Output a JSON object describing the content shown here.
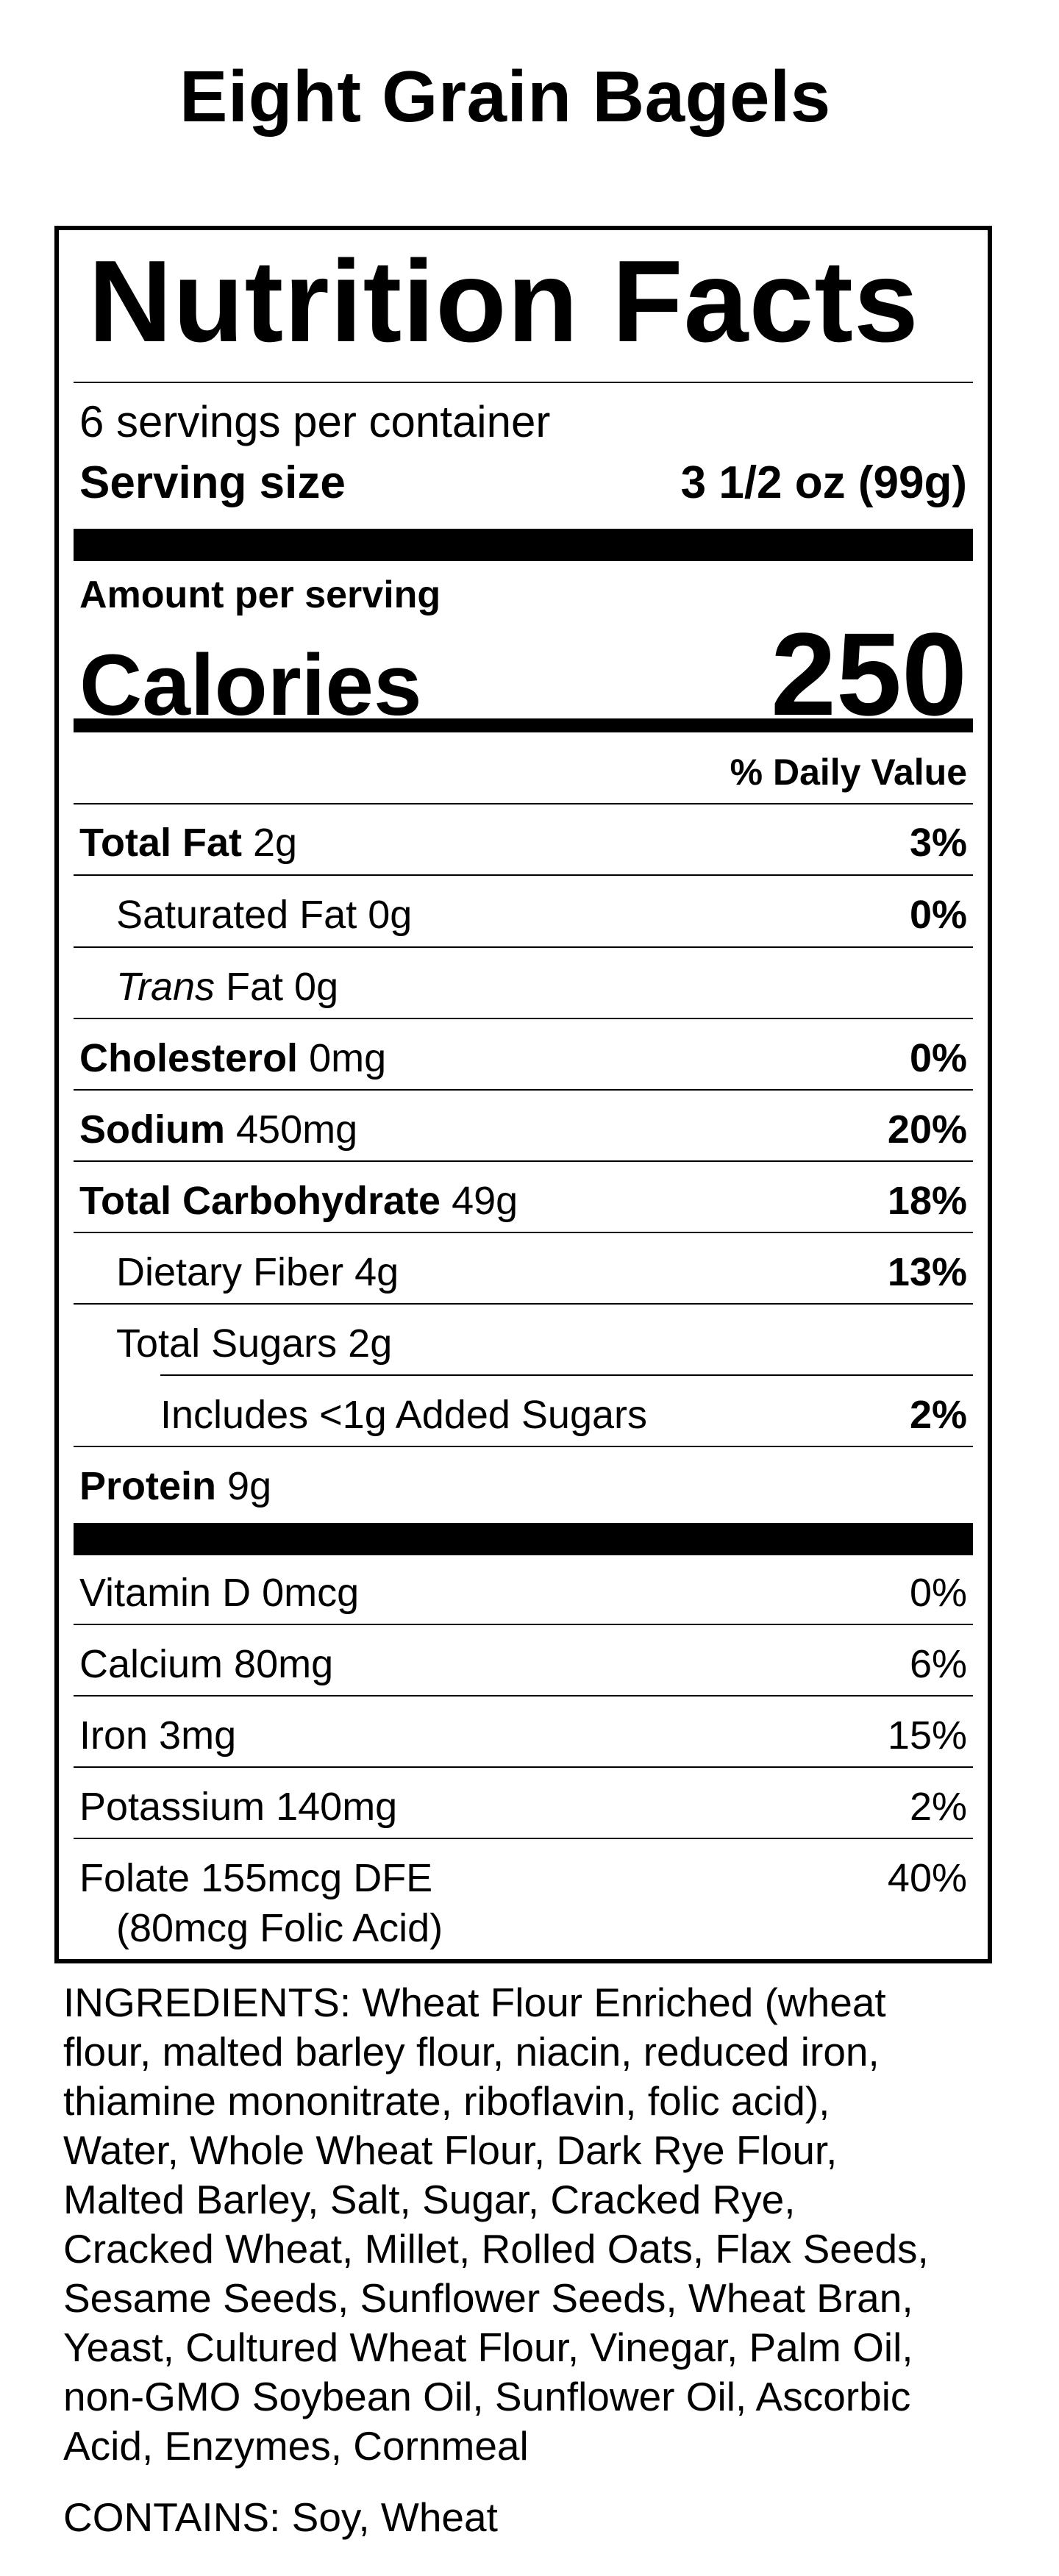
{
  "product": {
    "title": "Eight Grain Bagels"
  },
  "nutrition": {
    "title": "Nutrition Facts",
    "servings_per_container": "6 servings per container",
    "serving_size_label": "Serving size",
    "serving_size_value": "3 1/2 oz (99g)",
    "amount_per_serving": "Amount per serving",
    "calories_label": "Calories",
    "calories_value": "250",
    "daily_value_header": "% Daily Value",
    "total_fat": {
      "label": "Total Fat",
      "amount": " 2g",
      "dv": "3%"
    },
    "saturated_fat": {
      "label": "Saturated Fat 0g",
      "dv": "0%"
    },
    "trans_fat": {
      "label_italic": "Trans",
      "label_rest": " Fat 0g"
    },
    "cholesterol": {
      "label": "Cholesterol",
      "amount": " 0mg",
      "dv": "0%"
    },
    "sodium": {
      "label": "Sodium",
      "amount": " 450mg",
      "dv": "20%"
    },
    "total_carbohydrate": {
      "label": "Total Carbohydrate",
      "amount": " 49g",
      "dv": "18%"
    },
    "dietary_fiber": {
      "label": "Dietary Fiber 4g",
      "dv": "13%"
    },
    "total_sugars": {
      "label": "Total Sugars 2g"
    },
    "added_sugars": {
      "label": "Includes <1g Added Sugars",
      "dv": "2%"
    },
    "protein": {
      "label": "Protein",
      "amount": " 9g"
    },
    "vitamin_d": {
      "label": "Vitamin D 0mcg",
      "dv": "0%"
    },
    "calcium": {
      "label": "Calcium 80mg",
      "dv": "6%"
    },
    "iron": {
      "label": "Iron 3mg",
      "dv": "15%"
    },
    "potassium": {
      "label": "Potassium 140mg",
      "dv": "2%"
    },
    "folate": {
      "label": "Folate 155mcg DFE",
      "sub": "(80mcg Folic Acid)",
      "dv": "40%"
    }
  },
  "ingredients": {
    "lines": [
      "INGREDIENTS: Wheat Flour Enriched (wheat",
      "flour, malted barley flour, niacin, reduced iron,",
      "thiamine mononitrate, riboflavin, folic acid),",
      "Water, Whole Wheat Flour, Dark Rye Flour,",
      "Malted Barley, Salt, Sugar, Cracked Rye,",
      "Cracked Wheat, Millet, Rolled Oats, Flax Seeds,",
      "Sesame Seeds, Sunflower Seeds, Wheat Bran,",
      "Yeast, Cultured Wheat Flour, Vinegar, Palm Oil,",
      "non-GMO Soybean Oil, Sunflower Oil, Ascorbic",
      "Acid, Enzymes, Cornmeal"
    ],
    "contains": "CONTAINS: Soy, Wheat"
  }
}
